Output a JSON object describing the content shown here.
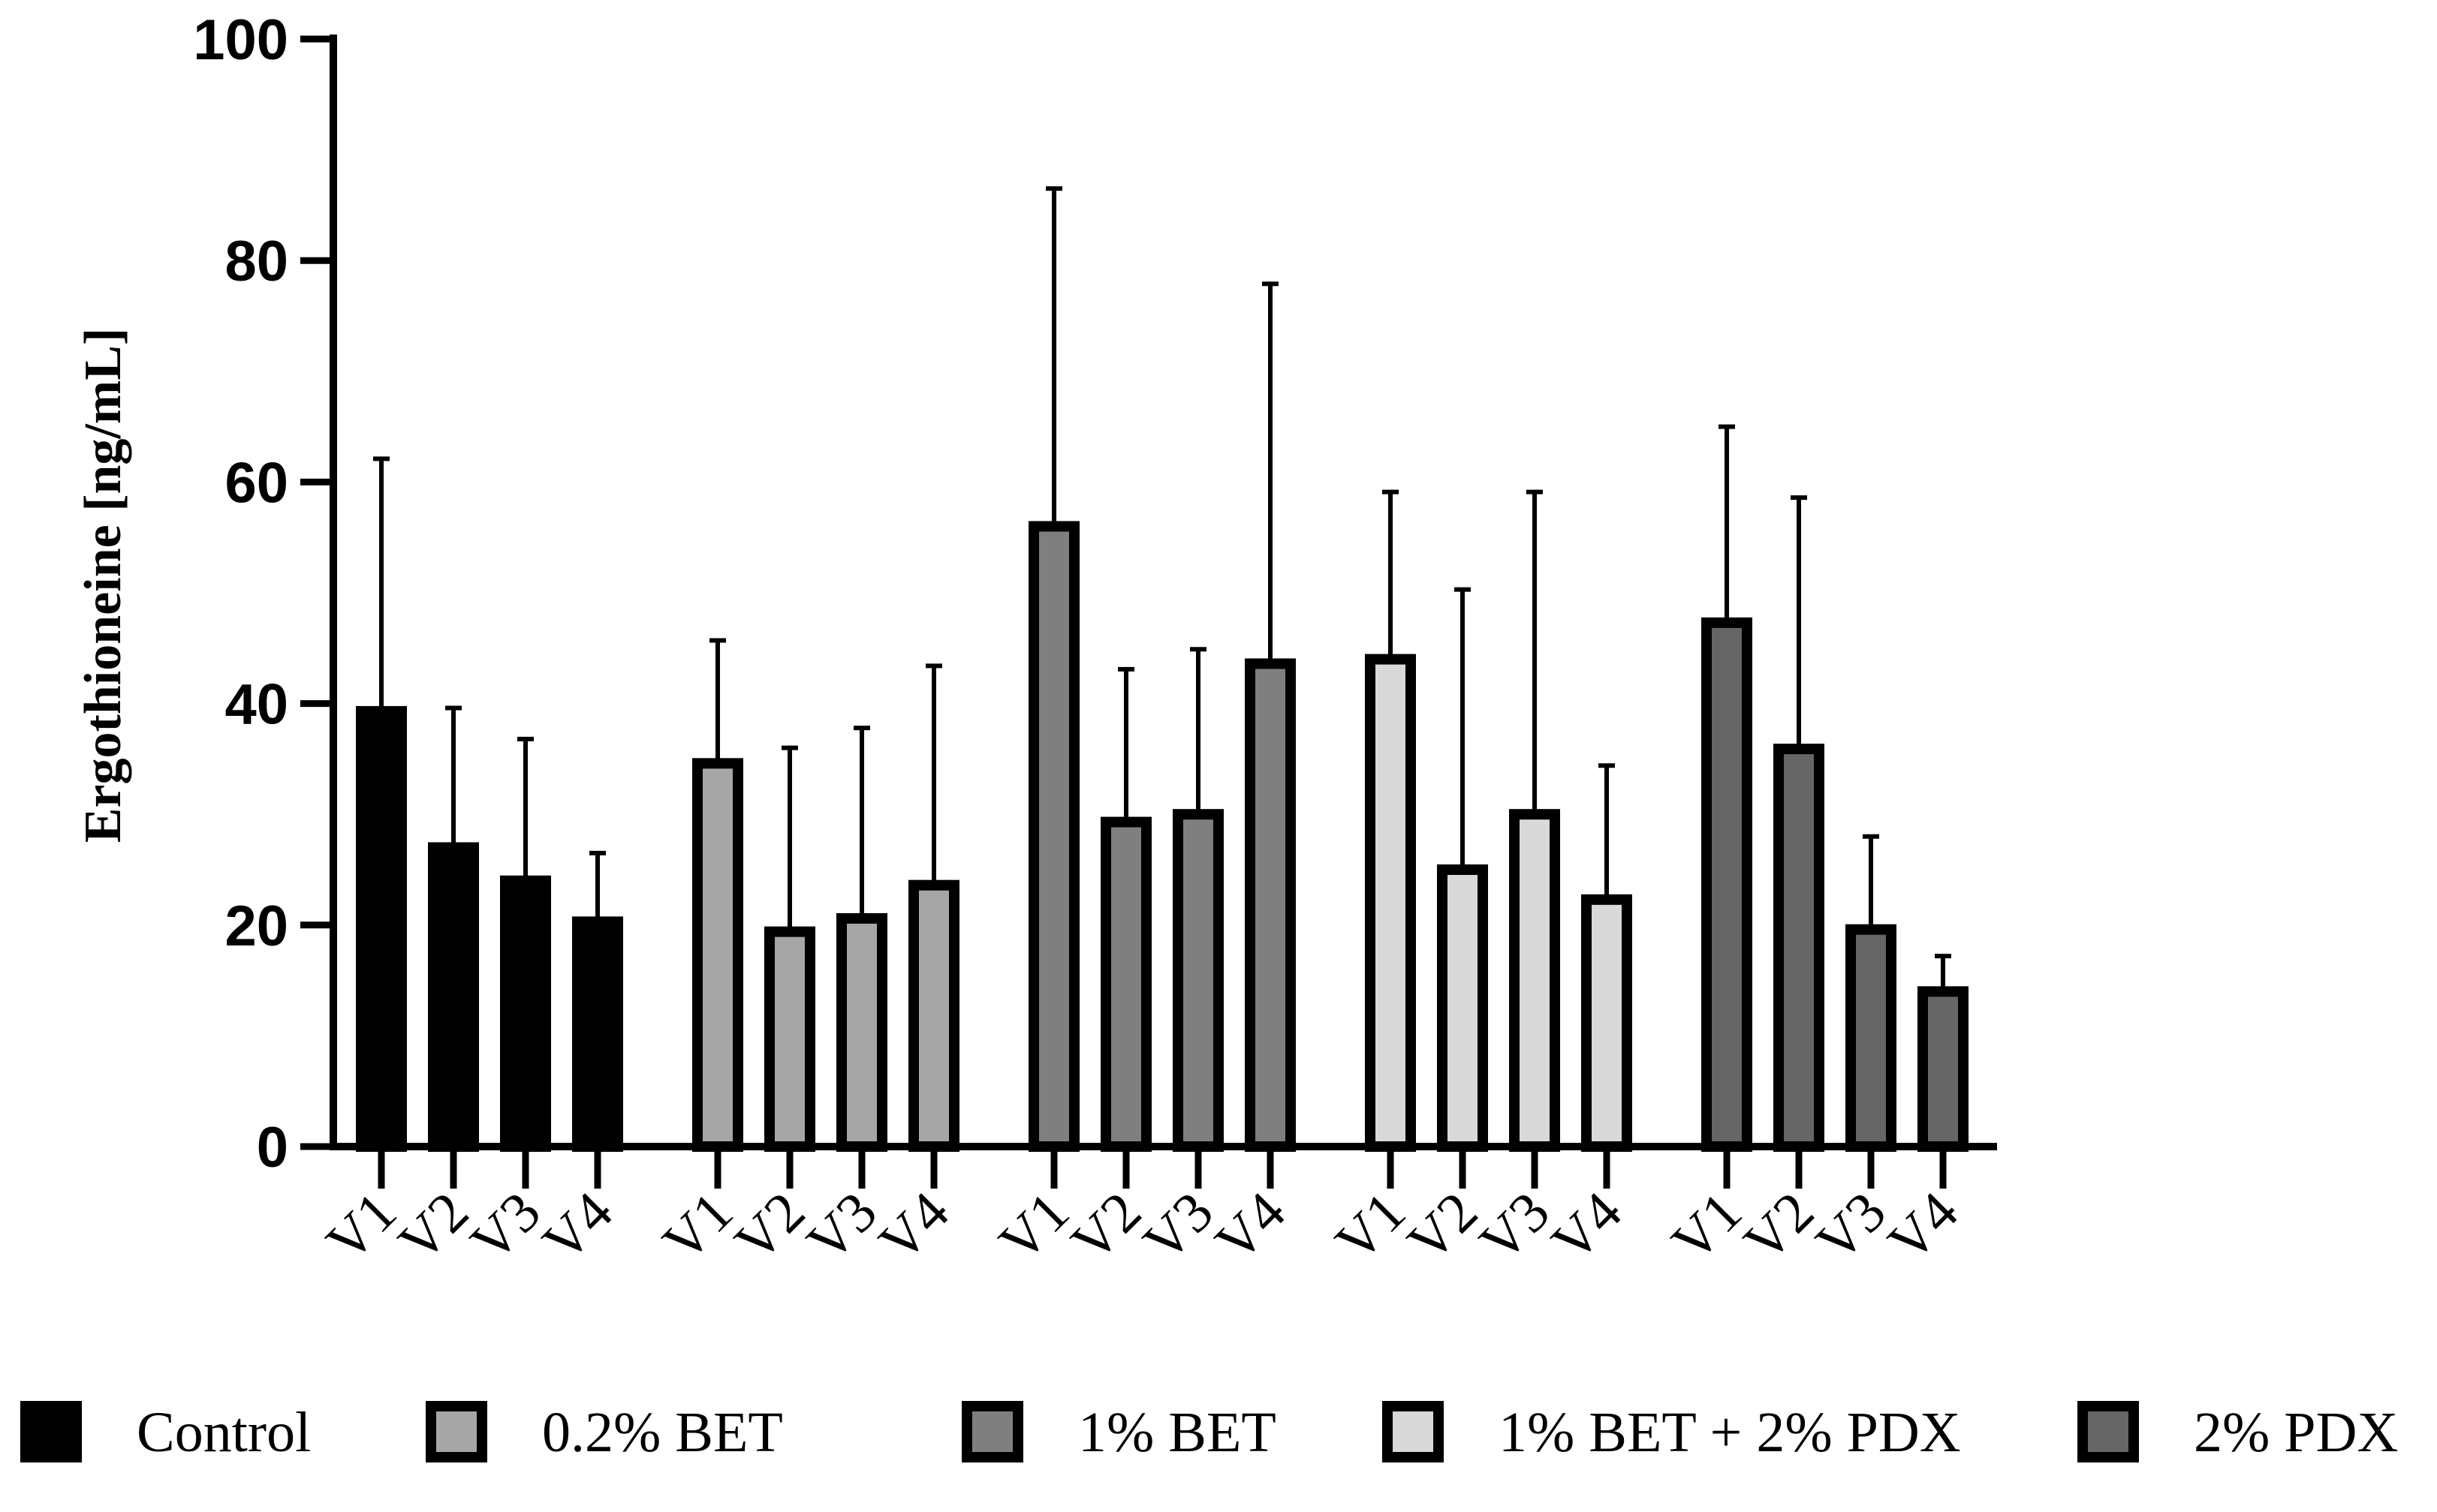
{
  "chart_data": {
    "type": "bar",
    "title": "",
    "xlabel": "",
    "ylabel": "Ergothioneine [ng/mL]",
    "ylim": [
      0,
      100
    ],
    "yticks": [
      0,
      20,
      40,
      60,
      80,
      100
    ],
    "grid": false,
    "legend_position": "bottom",
    "categories": [
      "V1",
      "V2",
      "V3",
      "V4"
    ],
    "series": [
      {
        "name": "Control",
        "color": "#000000",
        "values": [
          39.3,
          27.0,
          24.0,
          20.3
        ],
        "errors": [
          22.8,
          12.6,
          12.8,
          6.2
        ]
      },
      {
        "name": "0.2% BET",
        "color": "#a6a6a6",
        "values": [
          34.6,
          19.4,
          20.6,
          23.6
        ],
        "errors": [
          11.1,
          16.6,
          17.2,
          19.8
        ]
      },
      {
        "name": "1% BET",
        "color": "#7f7f7f",
        "values": [
          56.0,
          29.3,
          30.0,
          43.6
        ],
        "errors": [
          30.5,
          13.8,
          14.9,
          34.3
        ]
      },
      {
        "name": "1% BET + 2% PDX",
        "color": "#d9d9d9",
        "values": [
          44.0,
          25.0,
          30.0,
          22.3
        ],
        "errors": [
          15.1,
          25.3,
          29.1,
          12.1
        ]
      },
      {
        "name": "2% PDX",
        "color": "#666666",
        "values": [
          47.3,
          35.9,
          19.6,
          14.0
        ],
        "errors": [
          17.7,
          22.7,
          8.4,
          3.2
        ]
      }
    ]
  }
}
